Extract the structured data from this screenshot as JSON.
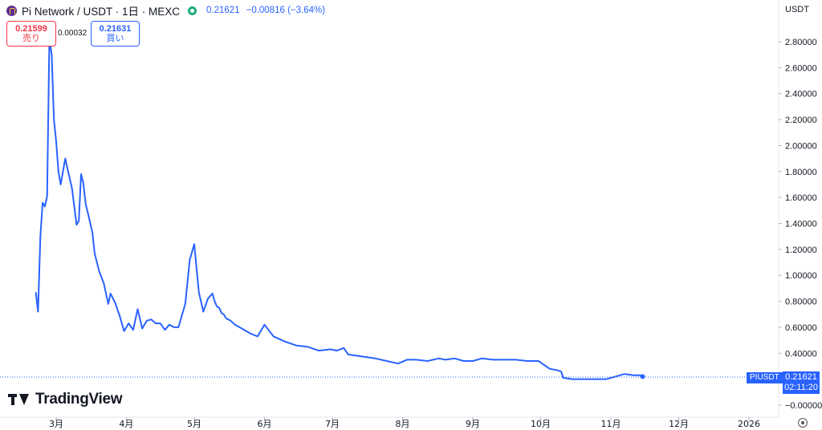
{
  "header": {
    "symbol_title": "Pi Network / USDT · 1日 · MEXC",
    "last_price": "0.21621",
    "change": "−0.00816 (−3.64%)"
  },
  "trade": {
    "sell_price": "0.21599",
    "sell_label": "売り",
    "spread": "0.00032",
    "buy_price": "0.21631",
    "buy_label": "買い"
  },
  "axis": {
    "currency_label": "USDT"
  },
  "price_tag": {
    "symbol": "PIUSDT",
    "value": "0.21621",
    "countdown": "02:11:20"
  },
  "watermark": "TradingView",
  "colors": {
    "line": "#2962ff",
    "sell": "#f23645",
    "buy": "#2962ff",
    "status": "#1ea97c"
  },
  "icons": {
    "logo": "pi-network-logo-icon",
    "status": "market-open-status-icon",
    "settings": "chart-settings-icon"
  },
  "chart_data": {
    "type": "line",
    "title": "Pi Network / USDT · 1日 · MEXC",
    "xlabel": "",
    "ylabel": "",
    "ylim": [
      -0.05,
      2.92
    ],
    "yticks": [
      -0.0,
      0.2,
      0.4,
      0.6,
      0.8,
      1.0,
      1.2,
      1.4,
      1.6,
      1.8,
      2.0,
      2.2,
      2.4,
      2.6,
      2.8
    ],
    "ytick_labels": [
      "−0.00000",
      "0.20000",
      "0.40000",
      "0.60000",
      "0.80000",
      "1.00000",
      "1.20000",
      "1.40000",
      "1.60000",
      "1.80000",
      "2.00000",
      "2.20000",
      "2.40000",
      "2.60000",
      "2.80000"
    ],
    "xlim": [
      "2025-02-10",
      "2026-01-26"
    ],
    "xticks": [
      {
        "date": "2025-03-01",
        "label": "3月"
      },
      {
        "date": "2025-04-01",
        "label": "4月"
      },
      {
        "date": "2025-05-01",
        "label": "5月"
      },
      {
        "date": "2025-06-01",
        "label": "6月"
      },
      {
        "date": "2025-07-01",
        "label": "7月"
      },
      {
        "date": "2025-08-01",
        "label": "8月"
      },
      {
        "date": "2025-09-01",
        "label": "9月"
      },
      {
        "date": "2025-10-01",
        "label": "10月"
      },
      {
        "date": "2025-11-01",
        "label": "11月"
      },
      {
        "date": "2025-12-01",
        "label": "12月"
      },
      {
        "date": "2026-01-01",
        "label": "2026"
      }
    ],
    "grid": false,
    "legend": "none",
    "last_value": 0.21621,
    "series": [
      {
        "x": [
          "2025-02-20",
          "2025-02-21",
          "2025-02-22",
          "2025-02-23",
          "2025-02-24",
          "2025-02-25",
          "2025-02-26",
          "2025-02-27",
          "2025-02-28",
          "2025-03-01",
          "2025-03-02",
          "2025-03-03",
          "2025-03-05",
          "2025-03-06",
          "2025-03-08",
          "2025-03-10",
          "2025-03-11",
          "2025-03-12",
          "2025-03-13",
          "2025-03-14",
          "2025-03-15",
          "2025-03-17",
          "2025-03-18",
          "2025-03-20",
          "2025-03-22",
          "2025-03-24",
          "2025-03-25",
          "2025-03-27",
          "2025-03-29",
          "2025-03-31",
          "2025-04-02",
          "2025-04-04",
          "2025-04-06",
          "2025-04-08",
          "2025-04-10",
          "2025-04-12",
          "2025-04-14",
          "2025-04-16",
          "2025-04-18",
          "2025-04-20",
          "2025-04-22",
          "2025-04-24",
          "2025-04-27",
          "2025-04-29",
          "2025-05-01",
          "2025-05-03",
          "2025-05-05",
          "2025-05-07",
          "2025-05-09",
          "2025-05-10",
          "2025-05-11",
          "2025-05-12",
          "2025-05-13",
          "2025-05-14",
          "2025-05-15",
          "2025-05-17",
          "2025-05-19",
          "2025-05-21",
          "2025-05-23",
          "2025-05-26",
          "2025-05-29",
          "2025-06-01",
          "2025-06-05",
          "2025-06-10",
          "2025-06-15",
          "2025-06-20",
          "2025-06-25",
          "2025-06-30",
          "2025-07-03",
          "2025-07-06",
          "2025-07-08",
          "2025-07-12",
          "2025-07-16",
          "2025-07-20",
          "2025-07-25",
          "2025-07-30",
          "2025-08-03",
          "2025-08-07",
          "2025-08-12",
          "2025-08-17",
          "2025-08-20",
          "2025-08-24",
          "2025-08-28",
          "2025-09-01",
          "2025-09-05",
          "2025-09-10",
          "2025-09-15",
          "2025-09-20",
          "2025-09-25",
          "2025-09-30",
          "2025-10-05",
          "2025-10-08",
          "2025-10-10",
          "2025-10-11",
          "2025-10-15",
          "2025-10-20",
          "2025-10-25",
          "2025-10-30",
          "2025-11-03",
          "2025-11-07",
          "2025-11-11",
          "2025-11-14",
          "2025-11-15"
        ],
        "y": [
          0.87,
          0.72,
          1.3,
          1.56,
          1.53,
          1.61,
          2.82,
          2.7,
          2.2,
          2.03,
          1.8,
          1.7,
          1.9,
          1.82,
          1.67,
          1.39,
          1.42,
          1.78,
          1.71,
          1.55,
          1.48,
          1.33,
          1.17,
          1.03,
          0.94,
          0.78,
          0.86,
          0.79,
          0.69,
          0.57,
          0.63,
          0.58,
          0.74,
          0.59,
          0.65,
          0.66,
          0.63,
          0.63,
          0.58,
          0.62,
          0.6,
          0.6,
          0.78,
          1.12,
          1.24,
          0.87,
          0.72,
          0.82,
          0.86,
          0.8,
          0.76,
          0.75,
          0.71,
          0.7,
          0.67,
          0.65,
          0.62,
          0.6,
          0.58,
          0.55,
          0.53,
          0.62,
          0.53,
          0.49,
          0.46,
          0.45,
          0.42,
          0.43,
          0.42,
          0.44,
          0.39,
          0.38,
          0.37,
          0.36,
          0.34,
          0.32,
          0.35,
          0.35,
          0.34,
          0.36,
          0.35,
          0.36,
          0.34,
          0.34,
          0.36,
          0.35,
          0.35,
          0.35,
          0.34,
          0.34,
          0.28,
          0.27,
          0.26,
          0.21,
          0.2,
          0.2,
          0.2,
          0.2,
          0.22,
          0.24,
          0.23,
          0.23,
          0.22
        ]
      }
    ]
  }
}
